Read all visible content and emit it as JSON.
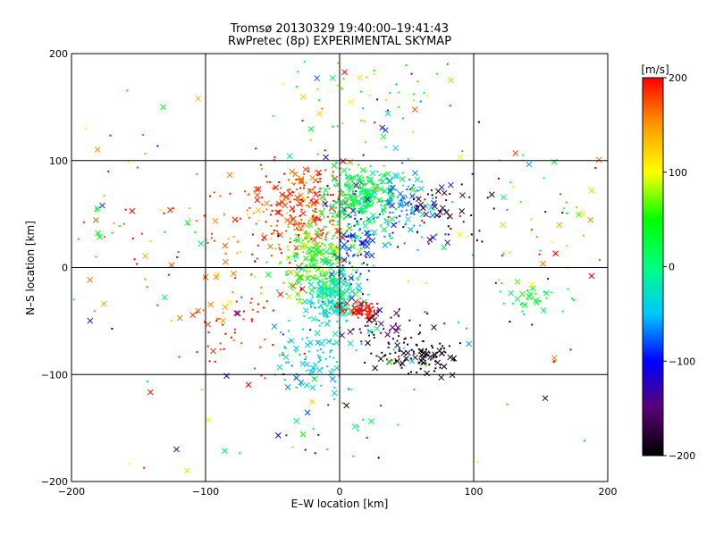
{
  "chart_data": {
    "type": "scatter",
    "title": "Tromsø 20130329 19:40:00–19:41:43",
    "subtitle": "RwPretec (8p) EXPERIMENTAL SKYMAP",
    "xlabel": "E–W location [km]",
    "ylabel": "N–S location [km]",
    "xlim": [
      -200,
      200
    ],
    "ylim": [
      -200,
      200
    ],
    "xticks": [
      -200,
      -100,
      0,
      100,
      200
    ],
    "yticks": [
      -200,
      -100,
      0,
      100,
      200
    ],
    "grid": true,
    "colorbar": {
      "label": "[m/s]",
      "range": [
        -200,
        200
      ],
      "ticks": [
        200,
        100,
        0,
        -100,
        -200
      ],
      "colormap": [
        "#000000",
        "#5a0073",
        "#0000ff",
        "#00c8ff",
        "#00ff80",
        "#00ff00",
        "#ffff00",
        "#ff9900",
        "#ff0000"
      ]
    },
    "marker_types": [
      "dot",
      "cross"
    ],
    "clusters": [
      {
        "x": -25,
        "y": 55,
        "sx": 20,
        "sy": 22,
        "v": 180,
        "n": 260,
        "spread": 40
      },
      {
        "x": -60,
        "y": 20,
        "sx": 35,
        "sy": 35,
        "v": 170,
        "n": 90,
        "spread": 60
      },
      {
        "x": 15,
        "y": 65,
        "sx": 12,
        "sy": 15,
        "v": 20,
        "n": 260,
        "spread": 30
      },
      {
        "x": 45,
        "y": 55,
        "sx": 18,
        "sy": 18,
        "v": -60,
        "n": 120,
        "spread": 40
      },
      {
        "x": -15,
        "y": 10,
        "sx": 12,
        "sy": 15,
        "v": 60,
        "n": 200,
        "spread": 50
      },
      {
        "x": -5,
        "y": -25,
        "sx": 10,
        "sy": 12,
        "v": -20,
        "n": 240,
        "spread": 30
      },
      {
        "x": 18,
        "y": -40,
        "sx": 6,
        "sy": 4,
        "v": 195,
        "n": 60,
        "spread": 10
      },
      {
        "x": 10,
        "y": 15,
        "sx": 6,
        "sy": 20,
        "v": -90,
        "n": 70,
        "spread": 20
      },
      {
        "x": 60,
        "y": -85,
        "sx": 15,
        "sy": 8,
        "v": -195,
        "n": 90,
        "spread": 10
      },
      {
        "x": 40,
        "y": -60,
        "sx": 18,
        "sy": 12,
        "v": -160,
        "n": 60,
        "spread": 40
      },
      {
        "x": -20,
        "y": -85,
        "sx": 14,
        "sy": 18,
        "v": -40,
        "n": 90,
        "spread": 30
      },
      {
        "x": 140,
        "y": -30,
        "sx": 15,
        "sy": 8,
        "v": 30,
        "n": 30,
        "spread": 20
      },
      {
        "x": 80,
        "y": 55,
        "sx": 20,
        "sy": 15,
        "v": -180,
        "n": 50,
        "spread": 40
      },
      {
        "x": -80,
        "y": -60,
        "sx": 25,
        "sy": 20,
        "v": 190,
        "n": 50,
        "spread": 30
      },
      {
        "x": -160,
        "y": 50,
        "sx": 30,
        "sy": 60,
        "v": 180,
        "n": 30,
        "spread": 40
      },
      {
        "x": 20,
        "y": 150,
        "sx": 40,
        "sy": 20,
        "v": 60,
        "n": 60,
        "spread": 160
      },
      {
        "x": 150,
        "y": 40,
        "sx": 30,
        "sy": 40,
        "v": 120,
        "n": 40,
        "spread": 140
      },
      {
        "x": 0,
        "y": -140,
        "sx": 40,
        "sy": 30,
        "v": 0,
        "n": 30,
        "spread": 160
      },
      {
        "x": -180,
        "y": 40,
        "sx": 8,
        "sy": 10,
        "v": 40,
        "n": 8,
        "spread": 20
      },
      {
        "x": 0,
        "y": 0,
        "sx": 110,
        "sy": 90,
        "v": 0,
        "n": 150,
        "spread": 200
      }
    ]
  }
}
